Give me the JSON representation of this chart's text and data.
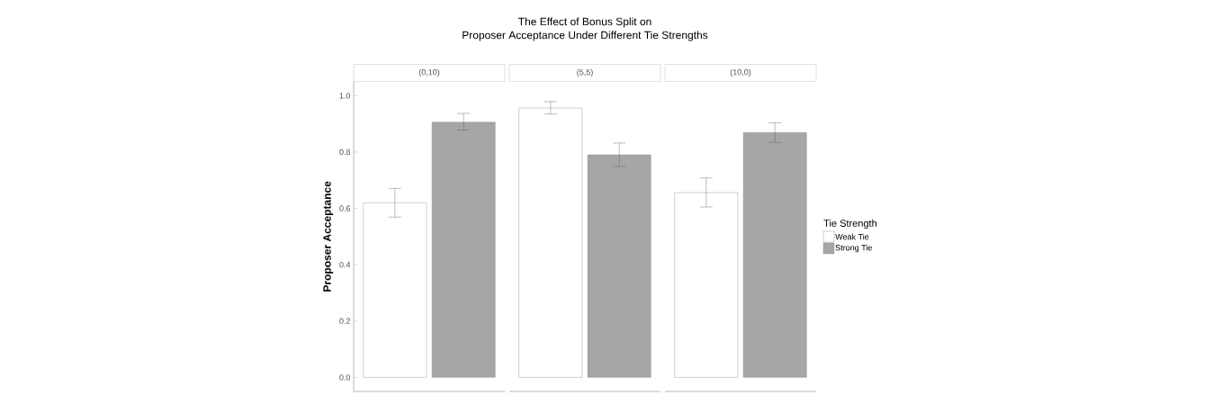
{
  "chart_data": {
    "type": "bar",
    "title": "The Effect of Bonus Split on",
    "subtitle": "Proposer Acceptance Under Different Tie Strengths",
    "ylabel": "Proposer Acceptance",
    "legend_title": "Tie Strength",
    "categories": [
      "(0,10)",
      "(5,5)",
      "(10,0)"
    ],
    "series": [
      {
        "name": "Weak Tie",
        "color": "#ffffff",
        "values": [
          0.62,
          0.956,
          0.656
        ],
        "errors": [
          [
            0.569,
            0.671
          ],
          [
            0.935,
            0.979
          ],
          [
            0.605,
            0.708
          ]
        ]
      },
      {
        "name": "Strong Tie",
        "color": "#a6a6a6",
        "values": [
          0.906,
          0.79,
          0.869
        ],
        "errors": [
          [
            0.878,
            0.937
          ],
          [
            0.749,
            0.832
          ],
          [
            0.834,
            0.904
          ]
        ]
      }
    ],
    "ylim": [
      -0.05,
      1.05
    ],
    "yticks": [
      {
        "value": 0,
        "label": "0.0"
      },
      0.2,
      0.4,
      0.6,
      0.8,
      {
        "value": 1,
        "label": "1.0"
      }
    ],
    "legend": "right"
  }
}
